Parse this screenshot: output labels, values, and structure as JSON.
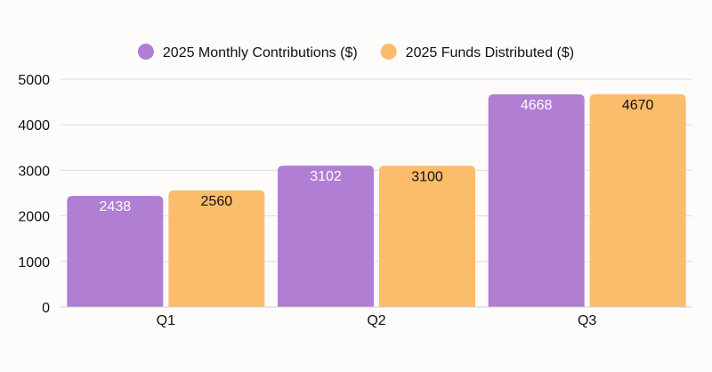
{
  "chart_data": {
    "type": "bar",
    "title": "",
    "xlabel": "",
    "ylabel": "",
    "categories": [
      "Q1",
      "Q2",
      "Q3"
    ],
    "series": [
      {
        "name": "2025 Monthly Contributions ($)",
        "values": [
          2438,
          3102,
          4668
        ],
        "color": "#b07fd4",
        "label_color": "#ffffff"
      },
      {
        "name": "2025 Funds Distributed ($)",
        "values": [
          2560,
          3100,
          4670
        ],
        "color": "#fbbd6b",
        "label_color": "#111111"
      }
    ],
    "ylim": [
      0,
      5000
    ],
    "yticks": [
      "0",
      "1000",
      "2000",
      "3000",
      "4000",
      "5000"
    ],
    "grid": true,
    "legend_position": "top"
  },
  "colors": {
    "background": "#fdfcfa",
    "grid": "#dddddd",
    "axis": "#cfcfcf"
  }
}
